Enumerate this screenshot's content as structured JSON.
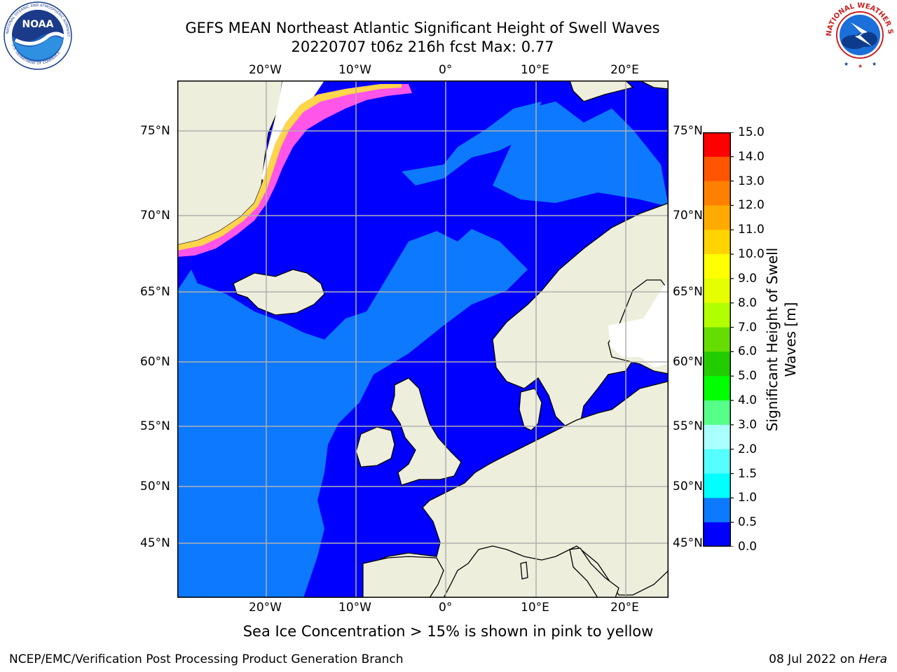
{
  "title": {
    "line1": "GEFS MEAN Northeast Atlantic Significant Height of Swell Waves",
    "line2": "20220707 t06z 216h fcst   Max: 0.77"
  },
  "map": {
    "lon_labels": [
      "20°W",
      "10°W",
      "0°",
      "10°E",
      "20°E"
    ],
    "lat_labels": [
      "75°N",
      "70°N",
      "65°N",
      "60°N",
      "55°N",
      "50°N",
      "45°N"
    ],
    "colors": {
      "ocean_low": "#0000ff",
      "ocean_mid": "#0d79ff",
      "land": "#eeeedd",
      "ice_pink": "#ff55e8",
      "ice_yellow": "#ffd54a",
      "grid": "#b0b0b0"
    }
  },
  "colorbar": {
    "label_line1": "Significant Height of Swell",
    "label_line2": "Waves [m]",
    "ticks": [
      "15.0",
      "14.0",
      "13.0",
      "12.0",
      "11.0",
      "10.0",
      "9.0",
      "8.0",
      "7.0",
      "6.0",
      "5.0",
      "4.0",
      "3.0",
      "2.0",
      "1.5",
      "1.0",
      "0.5",
      "0.0"
    ],
    "colors_top_to_bottom": [
      "#ff0000",
      "#ff2a00",
      "#ff5500",
      "#ff8000",
      "#ffaa00",
      "#ffd400",
      "#ffff00",
      "#e5ff00",
      "#b2ff00",
      "#66dd00",
      "#22cc00",
      "#00ff00",
      "#55ff88",
      "#aaffff",
      "#55ffff",
      "#00ffff",
      "#0d79ff",
      "#0000ff"
    ]
  },
  "caption": "Sea Ice Concentration > 15% is shown in pink to yellow",
  "footer": {
    "left": "NCEP/EMC/Verification Post Processing Product Generation Branch",
    "right_date": "08 Jul 2022 on ",
    "right_host": "Hera"
  },
  "logos": {
    "noaa_icon": "noaa-logo-icon",
    "nws_icon": "national-weather-service-logo-icon",
    "noaa_text": "NOAA",
    "noaa_ring_text": "NATIONAL OCEANIC AND ATMOSPHERIC ADMINISTRATION",
    "noaa_ring_bottom": "U.S. DEPARTMENT OF COMMERCE",
    "nws_ring_text": "NATIONAL WEATHER SERVICE"
  }
}
